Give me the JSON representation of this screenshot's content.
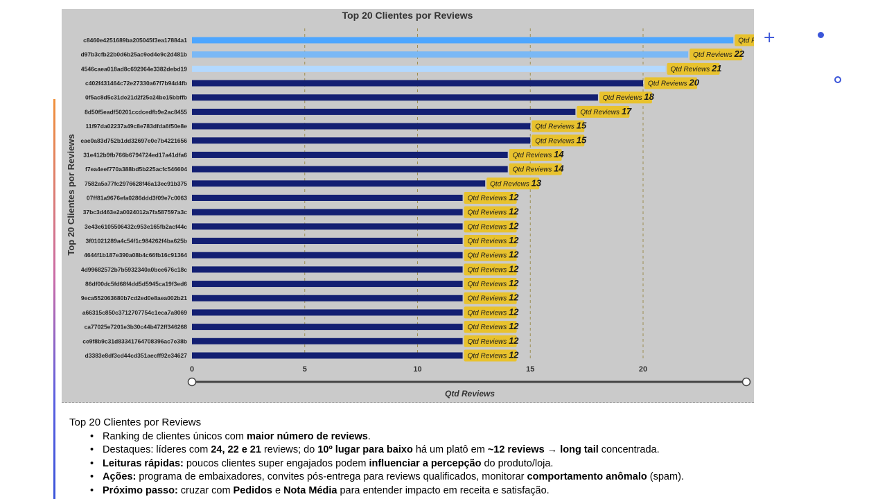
{
  "chart_data": {
    "type": "bar",
    "orientation": "horizontal",
    "title": "Top 20 Clientes por Reviews",
    "xlabel": "Qtd Reviews",
    "ylabel": "Top 20 Clientes por Reviews",
    "data_label_prefix": "Qtd Reviews",
    "xlim": [
      0,
      24
    ],
    "xticks": [
      0,
      5,
      10,
      15,
      20
    ],
    "grid": "vertical dashed",
    "categories": [
      "c8460e4251689ba205045f3ea17884a1",
      "d97b3cfb22b0d6b25ac9ed4e9c2d481b",
      "4546caea018ad8c692964e3382debd19",
      "c402f431464c72e27330a67f7b94d4fb",
      "0f5ac8d5c31de21d2f25e24be15bbffb",
      "8d50f5eadf50201ccdcedfb9e2ac8455",
      "11f97da02237a49c8e783dfda6f50e8e",
      "eae0a83d752b1dd32697e0e7b4221656",
      "31e412b9fb766b6794724ed17a41dfa6",
      "f7ea4eef770a388bd5b225acfc546604",
      "7582a5a77fc2976628f46a13ec91b375",
      "07ff81a9676efa0286ddd3f09e7c0063",
      "37bc3d463e2a0024012a7fa587597a3c",
      "3e43e6105506432c953e165fb2acf44c",
      "3f01021289a4c54f1c984262f4ba625b",
      "4644f1b187e390a08b4c66fb16c91364",
      "4d99682572b7b5932340a0bce676c18c",
      "86df00dc5fd68f4dd5d5945ca19f3ed6",
      "9eca552063680b7cd2ed0e8aea002b21",
      "a66315c850c3712707754c1eca7a8069",
      "ca77025e7201e3b30c44b472ff346268",
      "ce9f8b9c31d83341764708396ac7e38b",
      "d3383e8df3cd44cd351aecff92e34627"
    ],
    "values": [
      24,
      22,
      21,
      20,
      18,
      17,
      15,
      15,
      14,
      14,
      13,
      12,
      12,
      12,
      12,
      12,
      12,
      12,
      12,
      12,
      12,
      12,
      12
    ],
    "bar_colors": [
      "#4da6ff",
      "#7ab8f5",
      "#b3d9ff"
    ],
    "default_bar_color": "#131f72",
    "label_color": "#e8c22e",
    "panel_color": "#cacaca"
  },
  "notes": {
    "title": "Top 20 Clientes por Reviews",
    "bullets": [
      [
        {
          "t": "Ranking de clientes únicos com "
        },
        {
          "t": "maior número de reviews",
          "b": true
        },
        {
          "t": "."
        }
      ],
      [
        {
          "t": "Destaques: líderes com "
        },
        {
          "t": "24, 22 e 21",
          "b": true
        },
        {
          "t": " reviews; do "
        },
        {
          "t": "10º lugar para baixo",
          "b": true
        },
        {
          "t": " há um platô em "
        },
        {
          "t": "~12 reviews → long tail",
          "b": true
        },
        {
          "t": " concentrada."
        }
      ],
      [
        {
          "t": "Leituras rápidas:",
          "b": true
        },
        {
          "t": " poucos clientes super engajados podem "
        },
        {
          "t": "influenciar a percepção",
          "b": true
        },
        {
          "t": " do produto/loja."
        }
      ],
      [
        {
          "t": "Ações:",
          "b": true
        },
        {
          "t": " programa de embaixadores, convites pós-entrega para reviews qualificados, monitorar "
        },
        {
          "t": "comportamento anômalo",
          "b": true
        },
        {
          "t": " (spam)."
        }
      ],
      [
        {
          "t": "Próximo passo:",
          "b": true
        },
        {
          "t": " cruzar com "
        },
        {
          "t": "Pedidos",
          "b": true
        },
        {
          "t": " e "
        },
        {
          "t": "Nota Média",
          "b": true
        },
        {
          "t": " para entender impacto em receita e satisfação."
        }
      ]
    ]
  },
  "decorations": {
    "plus_glyph": "+",
    "accent_color": "#3b55d9"
  }
}
